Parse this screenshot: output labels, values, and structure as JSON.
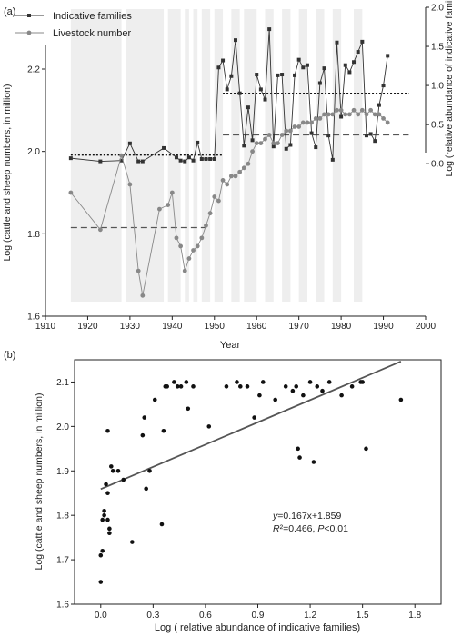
{
  "chart_data": [
    {
      "panel_label": "(a)",
      "type": "line",
      "xlabel": "Year",
      "ylabel_left": "Log (cattle and sheep numbers, in million)",
      "ylabel_right": "Log (relative abundance of indicative families)",
      "xlim": [
        1910,
        2000
      ],
      "ylim_left": [
        1.6,
        2.35
      ],
      "ylim_right": [
        -1.95,
        2.0
      ],
      "xticks": [
        1910,
        1920,
        1930,
        1940,
        1950,
        1960,
        1970,
        1980,
        1990,
        2000
      ],
      "yticks_left": [
        1.6,
        1.8,
        2.0,
        2.2
      ],
      "yticks_right": [
        0.0,
        0.5,
        1.0,
        1.5,
        2.0
      ],
      "xtick_labels": [
        "1910",
        "1920",
        "1930",
        "1940",
        "1950",
        "1960",
        "1970",
        "1980",
        "1990",
        "2000"
      ],
      "ytick_labels_left": [
        "1.6",
        "1.8",
        "2.0",
        "2.2"
      ],
      "ytick_labels_right": [
        "0.0",
        "0.5",
        "1.0",
        "1.5",
        "2.0"
      ],
      "legend": [
        "Indicative families",
        "Livestock number"
      ],
      "legend_position": "top-left",
      "shaded_periods": [
        [
          1916,
          1928
        ],
        [
          1929,
          1938
        ],
        [
          1939,
          1942
        ],
        [
          1943,
          1944
        ],
        [
          1945,
          1946
        ],
        [
          1947,
          1949
        ],
        [
          1950,
          1952
        ],
        [
          1954,
          1956
        ],
        [
          1957,
          1960
        ],
        [
          1962,
          1964
        ],
        [
          1966,
          1968
        ],
        [
          1970,
          1972
        ],
        [
          1974,
          1976
        ],
        [
          1978,
          1980
        ],
        [
          1983,
          1985
        ]
      ],
      "series": [
        {
          "name": "Indicative families",
          "axis": "right",
          "marker": "square",
          "color": "#333333",
          "x": [
            1916,
            1923,
            1928,
            1930,
            1932,
            1933,
            1938,
            1941,
            1942,
            1943,
            1944,
            1945,
            1946,
            1947,
            1948,
            1949,
            1950,
            1951,
            1952,
            1953,
            1954,
            1955,
            1956,
            1957,
            1958,
            1959,
            1960,
            1961,
            1962,
            1963,
            1964,
            1965,
            1966,
            1967,
            1968,
            1969,
            1970,
            1971,
            1972,
            1973,
            1974,
            1975,
            1976,
            1977,
            1978,
            1979,
            1980,
            1981,
            1982,
            1983,
            1984,
            1985,
            1986,
            1987,
            1988,
            1989,
            1990,
            1991
          ],
          "y": [
            0.07,
            0.03,
            0.04,
            0.26,
            0.03,
            0.03,
            0.2,
            0.08,
            0.04,
            0.03,
            0.08,
            0.04,
            0.27,
            0.06,
            0.06,
            0.06,
            0.06,
            1.23,
            1.32,
            0.95,
            1.12,
            1.58,
            0.9,
            0.23,
            0.72,
            0.3,
            1.14,
            0.95,
            0.82,
            1.72,
            0.22,
            1.13,
            1.14,
            0.19,
            0.24,
            1.13,
            1.33,
            1.23,
            1.26,
            0.39,
            0.21,
            1.03,
            1.22,
            0.36,
            0.05,
            1.55,
            0.6,
            1.26,
            1.17,
            1.3,
            1.43,
            1.56,
            0.36,
            0.38,
            0.29,
            0.75,
            1.0,
            1.38
          ]
        },
        {
          "name": "Livestock number",
          "axis": "left",
          "marker": "circle",
          "color": "#888888",
          "x": [
            1916,
            1923,
            1928,
            1930,
            1932,
            1933,
            1937,
            1939,
            1940,
            1941,
            1942,
            1943,
            1944,
            1945,
            1946,
            1947,
            1948,
            1949,
            1950,
            1951,
            1952,
            1953,
            1954,
            1955,
            1956,
            1957,
            1958,
            1959,
            1960,
            1961,
            1962,
            1963,
            1964,
            1965,
            1966,
            1967,
            1968,
            1969,
            1970,
            1971,
            1972,
            1973,
            1974,
            1975,
            1976,
            1977,
            1978,
            1979,
            1980,
            1981,
            1982,
            1983,
            1984,
            1985,
            1986,
            1987,
            1988,
            1989,
            1990,
            1991
          ],
          "y": [
            1.9,
            1.81,
            1.99,
            1.92,
            1.71,
            1.65,
            1.86,
            1.87,
            1.9,
            1.79,
            1.77,
            1.71,
            1.74,
            1.76,
            1.77,
            1.79,
            1.82,
            1.85,
            1.89,
            1.88,
            1.93,
            1.92,
            1.94,
            1.94,
            1.95,
            1.96,
            1.97,
            2.0,
            2.02,
            2.02,
            2.03,
            2.04,
            2.02,
            2.02,
            2.04,
            2.05,
            2.05,
            2.06,
            2.06,
            2.07,
            2.07,
            2.07,
            2.08,
            2.08,
            2.09,
            2.09,
            2.09,
            2.1,
            2.1,
            2.09,
            2.09,
            2.1,
            2.09,
            2.1,
            2.09,
            2.1,
            2.09,
            2.09,
            2.08,
            2.07
          ]
        }
      ],
      "reference_lines": [
        {
          "axis": "right",
          "style": "dotted",
          "x": [
            1916,
            1952
          ],
          "y": 0.11
        },
        {
          "axis": "right",
          "style": "dotted",
          "x": [
            1952,
            1996
          ],
          "y": 0.9
        },
        {
          "axis": "left",
          "style": "dashed",
          "x": [
            1916,
            1948
          ],
          "y": 1.815
        },
        {
          "axis": "left",
          "style": "dashed",
          "x": [
            1952,
            1996
          ],
          "y": 2.04
        }
      ]
    },
    {
      "panel_label": "(b)",
      "type": "scatter",
      "xlabel": "Log ( relative abundance of indicative families)",
      "ylabel": "Log (cattle and sheep numbers, in million)",
      "xlim": [
        -0.15,
        1.95
      ],
      "ylim": [
        1.6,
        2.15
      ],
      "xticks": [
        0.0,
        0.3,
        0.6,
        0.9,
        1.2,
        1.5,
        1.8
      ],
      "yticks": [
        1.6,
        1.7,
        1.8,
        1.9,
        2.0,
        2.1
      ],
      "xtick_labels": [
        "0.0",
        "0.3",
        "0.6",
        "0.9",
        "1.2",
        "1.5",
        "1.8"
      ],
      "ytick_labels": [
        "1.6",
        "1.7",
        "1.8",
        "1.9",
        "2.0",
        "2.1"
      ],
      "annotation": {
        "line1_italic": "y",
        "line1_rest": "=0.167x+1.859",
        "line2_italic_r": "R",
        "line2_rest": "²=0.466, ",
        "line2_italic_p": "P",
        "line2_tail": "<0.01"
      },
      "fit": {
        "slope": 0.167,
        "intercept": 1.859,
        "x_range": [
          0.0,
          1.72
        ]
      },
      "points": {
        "x": [
          0.0,
          0.0,
          0.01,
          0.01,
          0.02,
          0.02,
          0.03,
          0.04,
          0.04,
          0.04,
          0.05,
          0.05,
          0.06,
          0.07,
          0.1,
          0.13,
          0.18,
          0.24,
          0.25,
          0.28,
          0.31,
          0.35,
          0.37,
          0.38,
          0.42,
          0.44,
          0.46,
          0.49,
          0.5,
          0.53,
          0.62,
          0.72,
          0.78,
          0.8,
          0.84,
          0.88,
          0.91,
          0.93,
          1.0,
          1.06,
          1.1,
          1.12,
          1.13,
          1.14,
          1.16,
          1.2,
          1.22,
          1.24,
          1.27,
          1.31,
          1.38,
          1.44,
          1.49,
          1.5,
          1.52,
          1.72,
          0.36,
          0.26
        ],
        "y": [
          1.65,
          1.71,
          1.72,
          1.79,
          1.81,
          1.8,
          1.87,
          1.99,
          1.85,
          1.79,
          1.77,
          1.76,
          1.91,
          1.9,
          1.9,
          1.88,
          1.74,
          1.98,
          2.02,
          1.9,
          2.06,
          1.78,
          2.09,
          2.09,
          2.1,
          2.09,
          2.09,
          2.1,
          2.04,
          2.09,
          2.0,
          2.09,
          2.1,
          2.09,
          2.09,
          2.02,
          2.07,
          2.1,
          2.06,
          2.09,
          2.08,
          2.09,
          1.95,
          1.93,
          2.07,
          2.1,
          1.92,
          2.09,
          2.08,
          2.1,
          2.07,
          2.09,
          2.1,
          2.1,
          1.95,
          2.06,
          1.99,
          1.86
        ]
      }
    }
  ]
}
